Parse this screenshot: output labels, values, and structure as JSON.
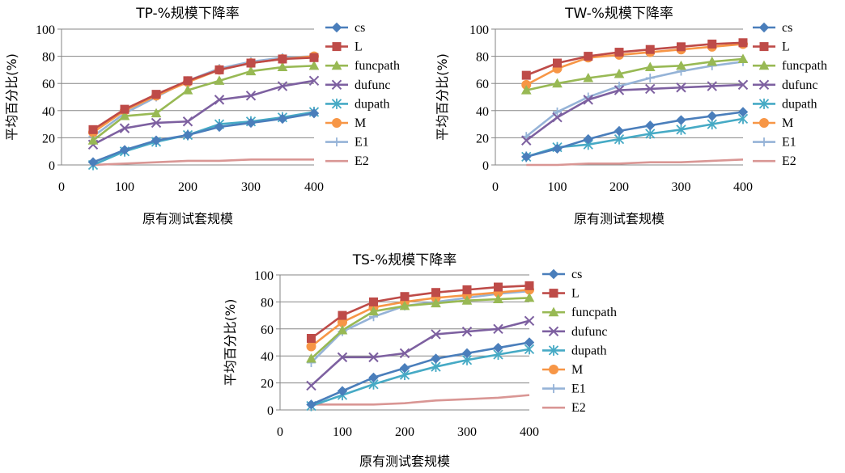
{
  "chart_data": [
    {
      "type": "line",
      "title": "TP-%规模下降率",
      "xlabel": "原有测试套规模",
      "ylabel": "平均百分比(%)",
      "x": [
        50,
        100,
        150,
        200,
        250,
        300,
        350,
        400
      ],
      "xticks": [
        0,
        100,
        200,
        300,
        400
      ],
      "yticks": [
        0,
        20,
        40,
        60,
        80,
        100
      ],
      "xlim": [
        0,
        400
      ],
      "ylim": [
        0,
        100
      ],
      "grid": "horizontal",
      "legend": "right",
      "series": [
        {
          "name": "cs",
          "color": "#4a7ebb",
          "marker": "diamond",
          "values": [
            2,
            11,
            18,
            22,
            28,
            31,
            34,
            38
          ]
        },
        {
          "name": "L",
          "color": "#be4b48",
          "marker": "square",
          "values": [
            26,
            41,
            52,
            62,
            70,
            75,
            78,
            79
          ]
        },
        {
          "name": "funcpath",
          "color": "#98b954",
          "marker": "triangle",
          "values": [
            18,
            36,
            38,
            55,
            62,
            69,
            72,
            73
          ]
        },
        {
          "name": "dufunc",
          "color": "#7d60a0",
          "marker": "x",
          "values": [
            15,
            27,
            31,
            32,
            48,
            51,
            58,
            62
          ]
        },
        {
          "name": "dupath",
          "color": "#46aac5",
          "marker": "star",
          "values": [
            0,
            10,
            17,
            22,
            30,
            32,
            35,
            39
          ]
        },
        {
          "name": "M",
          "color": "#f79646",
          "marker": "circle",
          "values": [
            24,
            40,
            51,
            61,
            70,
            75,
            78,
            80
          ]
        },
        {
          "name": "E1",
          "color": "#95b3d7",
          "marker": "plus",
          "values": [
            21,
            38,
            50,
            62,
            71,
            76,
            79,
            80
          ]
        },
        {
          "name": "E2",
          "color": "#d99694",
          "marker": "none",
          "values": [
            0,
            1,
            2,
            3,
            3,
            4,
            4,
            4
          ]
        }
      ]
    },
    {
      "type": "line",
      "title": "TW-%规模下降率",
      "xlabel": "原有测试套规模",
      "ylabel": "平均百分比(%)",
      "x": [
        50,
        100,
        150,
        200,
        250,
        300,
        350,
        400
      ],
      "xticks": [
        0,
        100,
        200,
        300,
        400
      ],
      "yticks": [
        0,
        20,
        40,
        60,
        80,
        100
      ],
      "xlim": [
        0,
        400
      ],
      "ylim": [
        0,
        100
      ],
      "grid": "horizontal",
      "legend": "right",
      "series": [
        {
          "name": "cs",
          "color": "#4a7ebb",
          "marker": "diamond",
          "values": [
            6,
            12,
            19,
            25,
            29,
            33,
            36,
            39
          ]
        },
        {
          "name": "L",
          "color": "#be4b48",
          "marker": "square",
          "values": [
            66,
            75,
            80,
            83,
            85,
            87,
            89,
            90
          ]
        },
        {
          "name": "funcpath",
          "color": "#98b954",
          "marker": "triangle",
          "values": [
            55,
            60,
            64,
            67,
            72,
            73,
            76,
            78
          ]
        },
        {
          "name": "dufunc",
          "color": "#7d60a0",
          "marker": "x",
          "values": [
            18,
            35,
            48,
            55,
            56,
            57,
            58,
            59
          ]
        },
        {
          "name": "dupath",
          "color": "#46aac5",
          "marker": "star",
          "values": [
            6,
            13,
            15,
            19,
            23,
            26,
            30,
            34
          ]
        },
        {
          "name": "M",
          "color": "#f79646",
          "marker": "circle",
          "values": [
            59,
            71,
            79,
            81,
            83,
            85,
            87,
            89
          ]
        },
        {
          "name": "E1",
          "color": "#95b3d7",
          "marker": "plus",
          "values": [
            21,
            39,
            50,
            58,
            64,
            69,
            73,
            76
          ]
        },
        {
          "name": "E2",
          "color": "#d99694",
          "marker": "none",
          "values": [
            0,
            0,
            1,
            1,
            2,
            2,
            3,
            4
          ]
        }
      ]
    },
    {
      "type": "line",
      "title": "TS-%规模下降率",
      "xlabel": "原有测试套规模",
      "ylabel": "平均百分比(%)",
      "x": [
        50,
        100,
        150,
        200,
        250,
        300,
        350,
        400
      ],
      "xticks": [
        0,
        100,
        200,
        300,
        400
      ],
      "yticks": [
        0,
        20,
        40,
        60,
        80,
        100
      ],
      "xlim": [
        0,
        400
      ],
      "ylim": [
        0,
        100
      ],
      "grid": "horizontal",
      "legend": "right",
      "series": [
        {
          "name": "cs",
          "color": "#4a7ebb",
          "marker": "diamond",
          "values": [
            4,
            14,
            24,
            31,
            38,
            42,
            46,
            50
          ]
        },
        {
          "name": "L",
          "color": "#be4b48",
          "marker": "square",
          "values": [
            53,
            70,
            80,
            84,
            87,
            89,
            91,
            92
          ]
        },
        {
          "name": "funcpath",
          "color": "#98b954",
          "marker": "triangle",
          "values": [
            38,
            59,
            73,
            77,
            79,
            81,
            82,
            83
          ]
        },
        {
          "name": "dufunc",
          "color": "#7d60a0",
          "marker": "x",
          "values": [
            18,
            39,
            39,
            42,
            56,
            58,
            60,
            66
          ]
        },
        {
          "name": "dupath",
          "color": "#46aac5",
          "marker": "star",
          "values": [
            3,
            11,
            19,
            26,
            32,
            37,
            41,
            45
          ]
        },
        {
          "name": "M",
          "color": "#f79646",
          "marker": "circle",
          "values": [
            47,
            65,
            76,
            80,
            83,
            85,
            87,
            89
          ]
        },
        {
          "name": "E1",
          "color": "#95b3d7",
          "marker": "plus",
          "values": [
            35,
            58,
            69,
            77,
            80,
            83,
            86,
            88
          ]
        },
        {
          "name": "E2",
          "color": "#d99694",
          "marker": "none",
          "values": [
            4,
            4,
            4,
            5,
            7,
            8,
            9,
            11
          ]
        }
      ]
    }
  ]
}
